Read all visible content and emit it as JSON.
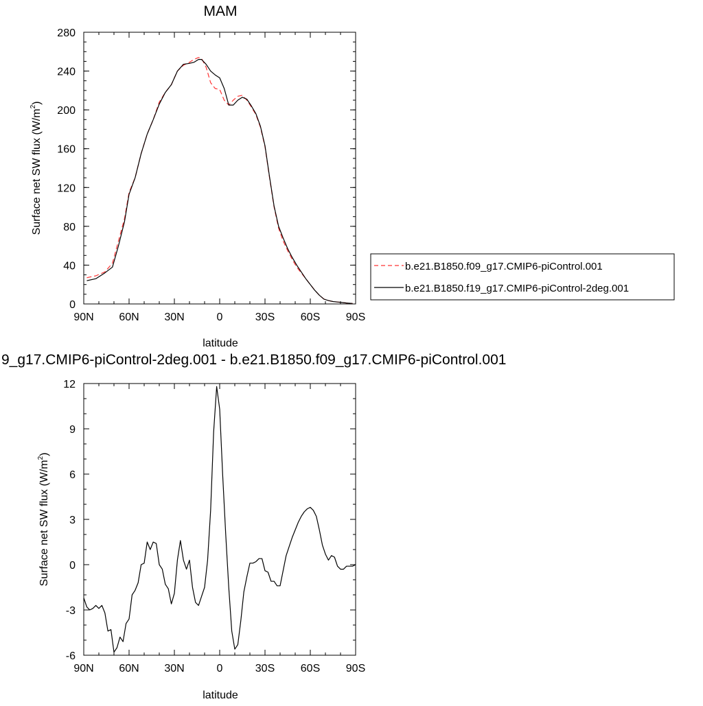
{
  "chart_data": [
    {
      "type": "line",
      "title": "MAM",
      "xlabel": "latitude",
      "ylabel_main": "Surface net SW flux (W/m",
      "ylabel_sup": "2",
      "ylabel_close": ")",
      "xlim": [
        90,
        -90
      ],
      "ylim": [
        0,
        280
      ],
      "x_ticks": [
        90,
        60,
        30,
        0,
        -30,
        -60,
        -90
      ],
      "x_tick_labels": [
        "90N",
        "60N",
        "30N",
        "0",
        "30S",
        "60S",
        "90S"
      ],
      "y_ticks": [
        0,
        40,
        80,
        120,
        160,
        200,
        240,
        280
      ],
      "y_tick_labels": [
        "0",
        "40",
        "80",
        "120",
        "160",
        "200",
        "240",
        "280"
      ],
      "legend_position": "right",
      "series": [
        {
          "name": "b.e21.B1850.f09_g17.CMIP6-piControl.001",
          "color": "#ff3333",
          "dash": "dashed",
          "x": [
            88,
            82,
            76,
            71,
            67,
            63,
            60,
            56,
            52,
            48,
            44,
            40,
            36,
            32,
            28,
            24,
            20,
            17,
            14,
            12,
            9,
            6,
            3,
            0,
            -3,
            -6,
            -9,
            -12,
            -15,
            -18,
            -21,
            -24,
            -27,
            -30,
            -33,
            -36,
            -39,
            -42,
            -45,
            -48,
            -51,
            -54,
            -57,
            -60,
            -63,
            -66,
            -69,
            -72,
            -75,
            -78,
            -81,
            -84,
            -88
          ],
          "y": [
            27,
            29,
            33,
            42,
            65,
            88,
            115,
            130,
            155,
            175,
            190,
            208,
            218,
            226,
            240,
            246,
            249,
            252,
            254,
            253,
            244,
            228,
            222,
            221,
            210,
            205,
            210,
            214,
            215,
            210,
            203,
            195,
            182,
            162,
            130,
            100,
            78,
            65,
            55,
            46,
            38,
            32,
            26,
            20,
            14,
            9,
            5,
            3.5,
            2.5,
            2,
            1.5,
            1,
            0.5
          ]
        },
        {
          "name": "b.e21.B1850.f19_g17.CMIP6-piControl-2deg.001",
          "color": "#000000",
          "dash": "solid",
          "x": [
            88,
            82,
            76,
            71,
            67,
            63,
            60,
            56,
            52,
            48,
            44,
            40,
            36,
            32,
            28,
            24,
            20,
            17,
            14,
            12,
            9,
            6,
            3,
            0,
            -3,
            -6,
            -9,
            -12,
            -15,
            -18,
            -21,
            -24,
            -27,
            -30,
            -33,
            -36,
            -39,
            -42,
            -45,
            -48,
            -51,
            -54,
            -57,
            -60,
            -63,
            -66,
            -69,
            -72,
            -75,
            -78,
            -81,
            -84,
            -88
          ],
          "y": [
            24,
            26,
            32,
            38,
            60,
            85,
            113,
            130,
            155,
            175,
            190,
            206,
            218,
            226,
            240,
            247,
            248,
            249,
            252,
            252,
            247,
            240,
            236,
            233,
            222,
            205,
            205,
            210,
            213,
            211,
            204,
            196,
            183,
            163,
            131,
            101,
            80,
            68,
            57,
            48,
            40,
            33,
            26,
            20,
            14,
            9,
            5,
            3.5,
            2.5,
            2,
            1.5,
            1,
            0.5
          ]
        }
      ]
    },
    {
      "type": "line",
      "title": "9_g17.CMIP6-piControl-2deg.001 - b.e21.B1850.f09_g17.CMIP6-piControl.001",
      "xlabel": "latitude",
      "ylabel_main": "Surface net SW flux (W/m",
      "ylabel_sup": "2",
      "ylabel_close": ")",
      "xlim": [
        90,
        -90
      ],
      "ylim": [
        -6,
        12
      ],
      "x_ticks": [
        90,
        60,
        30,
        0,
        -30,
        -60,
        -90
      ],
      "x_tick_labels": [
        "90N",
        "60N",
        "30N",
        "0",
        "30S",
        "60S",
        "90S"
      ],
      "y_ticks": [
        -6,
        -3,
        0,
        3,
        6,
        9,
        12
      ],
      "y_tick_labels": [
        "-6",
        "-3",
        "0",
        "3",
        "6",
        "9",
        "12"
      ],
      "series": [
        {
          "color": "#000000",
          "dash": "solid",
          "x": [
            90,
            88,
            86,
            84,
            82,
            80,
            78,
            76,
            74,
            72,
            70,
            68,
            66,
            64,
            62,
            60,
            58,
            56,
            54,
            52,
            50,
            48,
            46,
            44,
            42,
            40,
            38,
            36,
            34,
            32,
            30,
            28,
            26,
            24,
            22,
            20,
            18,
            16,
            14,
            12,
            10,
            8,
            6,
            4,
            2,
            0,
            -2,
            -4,
            -6,
            -8,
            -10,
            -12,
            -14,
            -16,
            -18,
            -20,
            -22,
            -24,
            -26,
            -28,
            -30,
            -32,
            -34,
            -36,
            -38,
            -40,
            -42,
            -44,
            -46,
            -48,
            -50,
            -52,
            -54,
            -56,
            -58,
            -60,
            -62,
            -64,
            -66,
            -68,
            -70,
            -72,
            -74,
            -76,
            -78,
            -80,
            -82,
            -84,
            -86,
            -88,
            -90
          ],
          "y": [
            -2.2,
            -2.8,
            -3.0,
            -2.9,
            -2.7,
            -2.9,
            -2.7,
            -3.2,
            -4.4,
            -4.3,
            -5.8,
            -5.5,
            -4.8,
            -5.1,
            -3.9,
            -3.6,
            -2.0,
            -1.7,
            -1.2,
            0.0,
            0.1,
            1.5,
            1.0,
            1.5,
            1.4,
            0.0,
            -0.3,
            -1.3,
            -1.6,
            -2.6,
            -1.9,
            0.3,
            1.6,
            0.3,
            -0.3,
            0.3,
            -1.5,
            -2.5,
            -2.7,
            -2.1,
            -1.5,
            0.3,
            3.6,
            8.8,
            11.8,
            10.3,
            5.9,
            2.0,
            -1.5,
            -4.4,
            -5.6,
            -5.3,
            -3.7,
            -1.8,
            -0.8,
            0.1,
            0.1,
            0.2,
            0.4,
            0.4,
            -0.4,
            -0.5,
            -1.1,
            -1.1,
            -1.4,
            -1.4,
            -0.4,
            0.6,
            1.2,
            1.8,
            2.3,
            2.8,
            3.2,
            3.5,
            3.7,
            3.8,
            3.6,
            3.2,
            2.3,
            1.3,
            0.7,
            0.3,
            0.6,
            0.5,
            -0.1,
            -0.3,
            -0.3,
            -0.1,
            -0.1,
            -0.1,
            0.0
          ]
        }
      ]
    }
  ]
}
